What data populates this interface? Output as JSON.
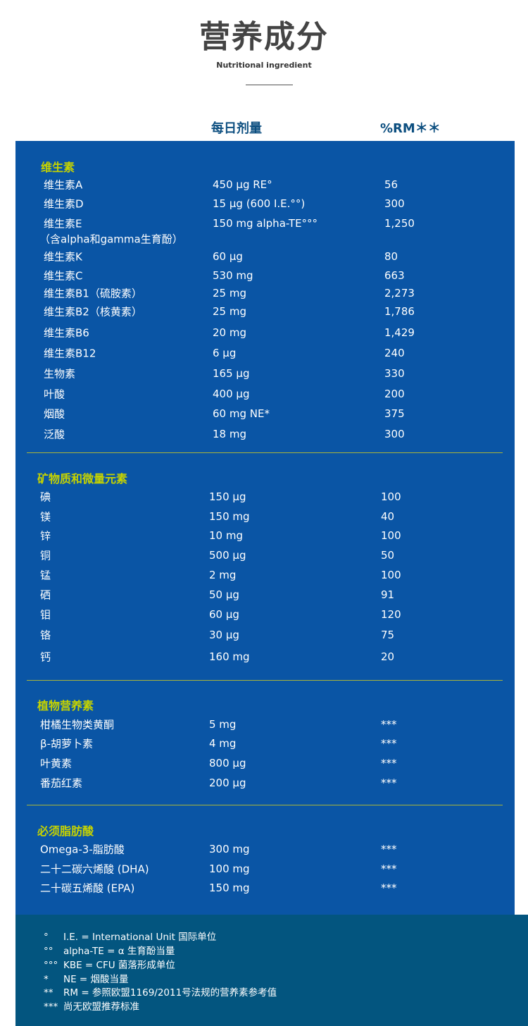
{
  "header": {
    "title": "营养成分",
    "subtitle": "Nutritional ingredient"
  },
  "columns": {
    "dose": "每日剂量",
    "rm": "%RM＊＊"
  },
  "colors": {
    "panel": "#0a55a5",
    "footer": "#03557f",
    "section_title": "#c6d300"
  },
  "sections": [
    {
      "title": "维生素",
      "rows": [
        {
          "name": "维生素A",
          "dose": "450 µg RE°",
          "rm": "56"
        },
        {
          "name": "维生素D",
          "dose": "15 µg (600 I.E.°°)",
          "rm": "300"
        },
        {
          "name": "维生素E",
          "dose": "150 mg alpha-TE°°°",
          "rm": "1,250",
          "note": "（含alpha和gamma生育酚）"
        },
        {
          "name": "维生素K",
          "dose": "60 µg",
          "rm": "80"
        },
        {
          "name": "维生素C",
          "dose": "530 mg",
          "rm": "663"
        },
        {
          "name": "维生素B1（硫胺素）",
          "dose": "25 mg",
          "rm": "2,273"
        },
        {
          "name": "维生素B2（核黄素）",
          "dose": "25 mg",
          "rm": "1,786"
        },
        {
          "name": "维生素B6",
          "dose": "20 mg",
          "rm": "1,429"
        },
        {
          "name": "维生素B12",
          "dose": "6 µg",
          "rm": "240"
        },
        {
          "name": "生物素",
          "dose": "165 µg",
          "rm": "330"
        },
        {
          "name": "叶酸",
          "dose": "400 µg",
          "rm": "200"
        },
        {
          "name": "烟酸",
          "dose": "60 mg NE*",
          "rm": "375"
        },
        {
          "name": "泛酸",
          "dose": "18 mg",
          "rm": "300"
        }
      ]
    },
    {
      "title": "矿物质和微量元素",
      "rows": [
        {
          "name": "碘",
          "dose": "150 µg",
          "rm": "100"
        },
        {
          "name": "镁",
          "dose": "150 mg",
          "rm": "40"
        },
        {
          "name": "锌",
          "dose": "10 mg",
          "rm": "100"
        },
        {
          "name": "铜",
          "dose": "500 µg",
          "rm": "50"
        },
        {
          "name": "锰",
          "dose": "2 mg",
          "rm": "100"
        },
        {
          "name": "硒",
          "dose": "50 µg",
          "rm": "91"
        },
        {
          "name": "钼",
          "dose": "60 µg",
          "rm": "120"
        },
        {
          "name": "铬",
          "dose": "30 µg",
          "rm": "75"
        },
        {
          "name": "钙",
          "dose": "160 mg",
          "rm": "20"
        }
      ]
    },
    {
      "title": "植物营养素",
      "rows": [
        {
          "name": "柑橘生物类黄酮",
          "dose": "5 mg",
          "rm": "***"
        },
        {
          "name": "β-胡萝卜素",
          "dose": "4 mg",
          "rm": "***"
        },
        {
          "name": "叶黄素",
          "dose": "800 µg",
          "rm": "***"
        },
        {
          "name": "番茄红素",
          "dose": "200 µg",
          "rm": "***"
        }
      ]
    },
    {
      "title": "必须脂肪酸",
      "rows": [
        {
          "name": "Omega-3-脂肪酸",
          "dose": "300 mg",
          "rm": "***"
        },
        {
          "name": "二十二碳六烯酸 (DHA)",
          "dose": "100 mg",
          "rm": "***"
        },
        {
          "name": "二十碳五烯酸 (EPA)",
          "dose": "150 mg",
          "rm": "***"
        }
      ]
    }
  ],
  "footnotes": [
    {
      "mark": "°",
      "text": "I.E. = International Unit  国际单位"
    },
    {
      "mark": "°°",
      "text": "alpha-TE = α 生育酚当量"
    },
    {
      "mark": "°°°",
      "text": "KBE = CFU 菌落形成单位"
    },
    {
      "mark": "*",
      "text": "NE =  烟酸当量"
    },
    {
      "mark": "**",
      "text": "RM =  参照欧盟1169/2011号法规的营养素参考值"
    },
    {
      "mark": "***",
      "text": "尚无欧盟推荐标准"
    }
  ]
}
